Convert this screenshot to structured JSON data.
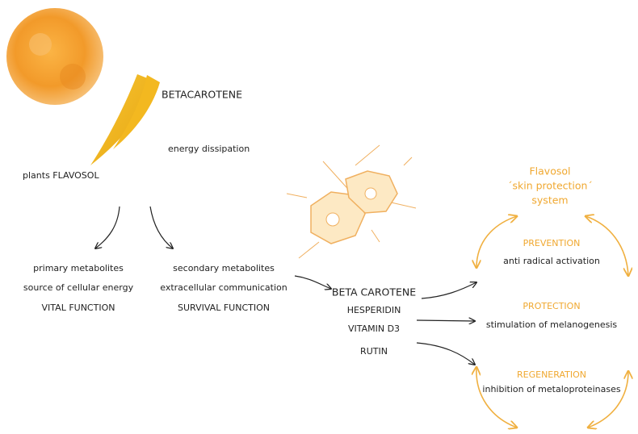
{
  "labels": {
    "betacarotene": "BETACAROTENE",
    "energy": "energy dissipation",
    "plants": "plants FLAVOSOL"
  },
  "primary": [
    "primary metabolites",
    "source of cellular energy",
    "VITAL FUNCTION"
  ],
  "secondary": [
    "secondary metabolites",
    "extracellular communication",
    "SURVIVAL FUNCTION"
  ],
  "actives": [
    "BETA CAROTENE",
    "HESPERIDIN",
    "VITAMIN D3",
    "RUTIN"
  ],
  "system": {
    "title": [
      "Flavosol",
      "´skin protection´",
      "system"
    ],
    "items": [
      {
        "name": "PREVENTION",
        "text": "anti radical activation"
      },
      {
        "name": "PROTECTION",
        "text": "stimulation of melanogenesis"
      },
      {
        "name": "REGENERATION",
        "text": "inhibition of metaloproteinases"
      }
    ]
  }
}
